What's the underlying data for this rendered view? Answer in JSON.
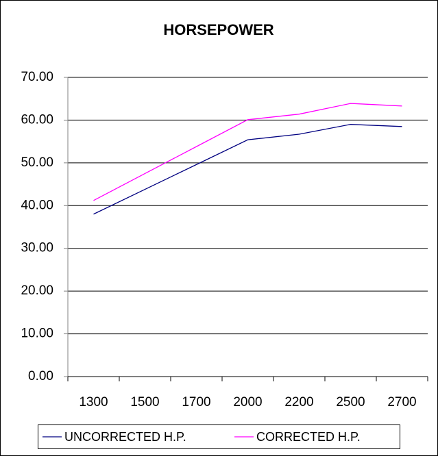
{
  "chart_data": {
    "type": "line",
    "title": "HORSEPOWER",
    "categories": [
      "1300",
      "1500",
      "1700",
      "2000",
      "2200",
      "2500",
      "2700"
    ],
    "series": [
      {
        "name": "UNCORRECTED H.P.",
        "color": "#000080",
        "values": [
          38.0,
          43.8,
          49.6,
          55.4,
          56.7,
          59.0,
          58.5
        ]
      },
      {
        "name": "CORRECTED H.P.",
        "color": "#ff00ff",
        "values": [
          41.2,
          47.5,
          53.8,
          60.1,
          61.4,
          63.9,
          63.3
        ]
      }
    ],
    "ylim": [
      0,
      70
    ],
    "yticks": [
      {
        "value": 0,
        "label": "0.00"
      },
      {
        "value": 10,
        "label": "10.00"
      },
      {
        "value": 20,
        "label": "20.00"
      },
      {
        "value": 30,
        "label": "30.00"
      },
      {
        "value": 40,
        "label": "40.00"
      },
      {
        "value": 50,
        "label": "50.00"
      },
      {
        "value": 60,
        "label": "60.00"
      },
      {
        "value": 70,
        "label": "70.00"
      }
    ],
    "grid": true,
    "legend": "bottom"
  }
}
